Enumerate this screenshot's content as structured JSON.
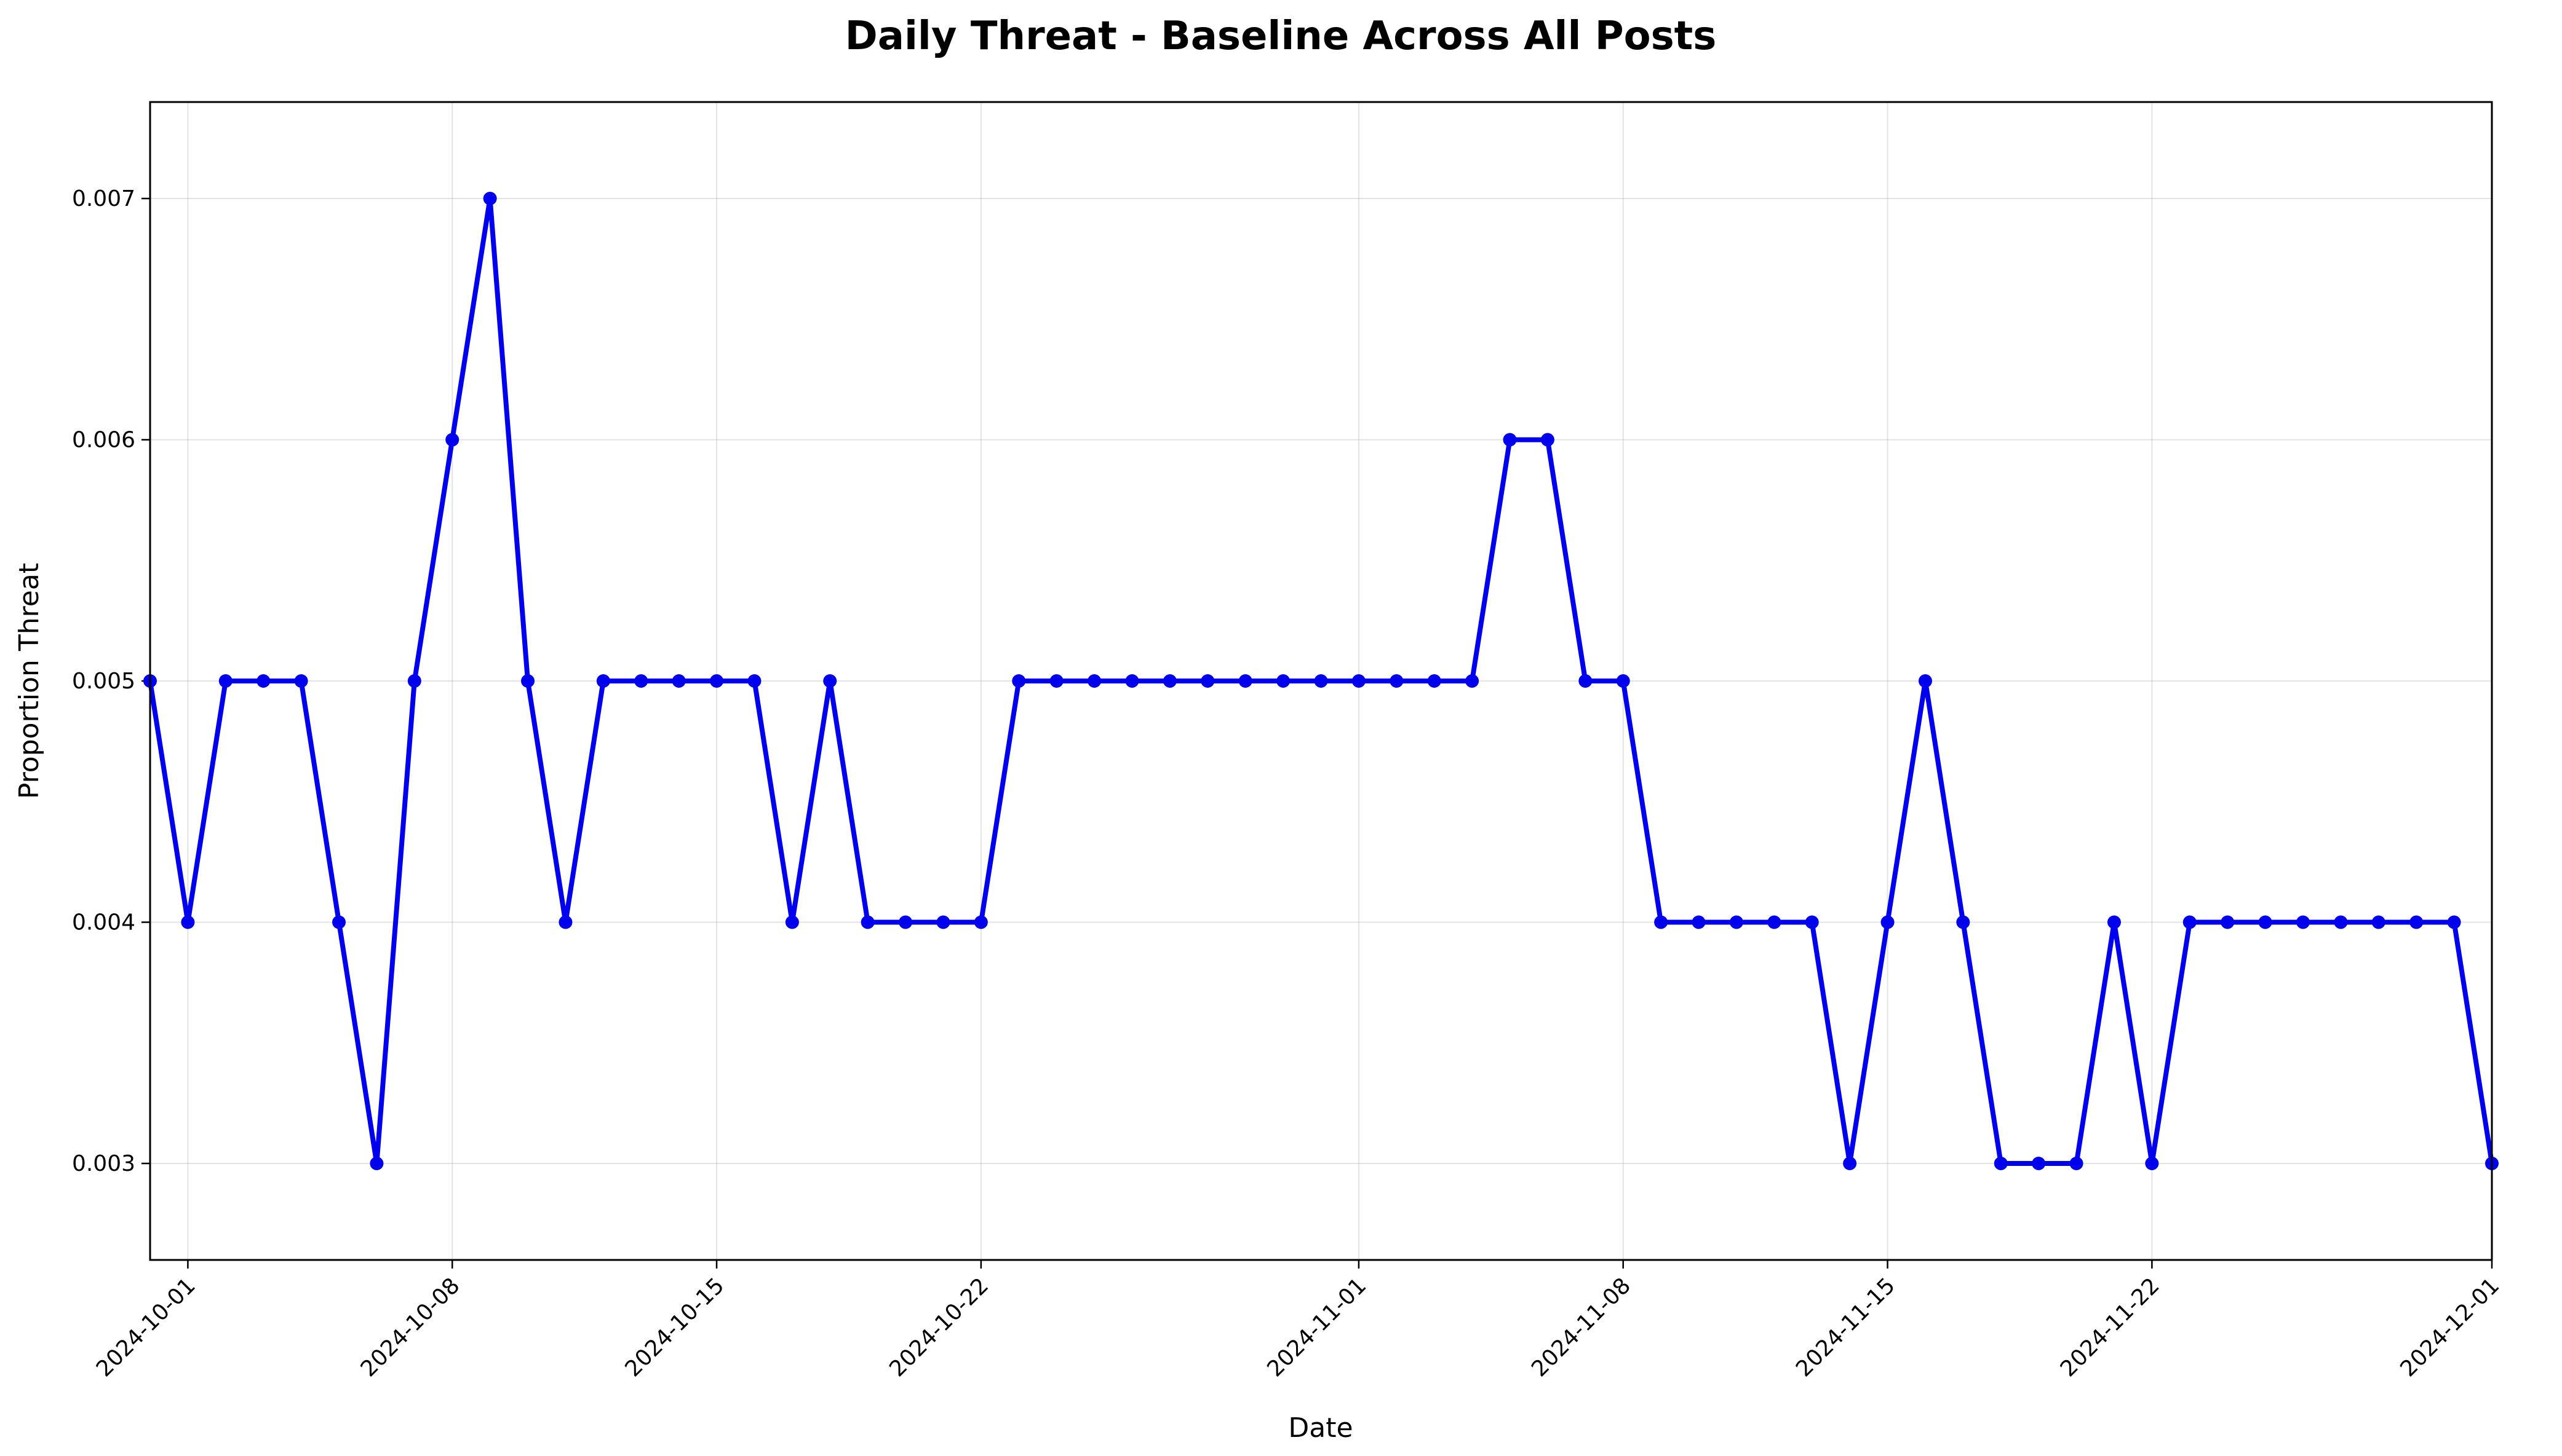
{
  "chart_data": {
    "type": "line",
    "title": "Daily Threat - Baseline Across All Posts",
    "xlabel": "Date",
    "ylabel": "Proportion Threat",
    "xlim": [
      "2024-09-30",
      "2024-12-01"
    ],
    "ylim": [
      0.0026,
      0.0074
    ],
    "x_ticks": [
      "2024-10-01",
      "2024-10-08",
      "2024-10-15",
      "2024-10-22",
      "2024-11-01",
      "2024-11-08",
      "2024-11-15",
      "2024-11-22",
      "2024-12-01"
    ],
    "y_ticks": [
      "0.003",
      "0.004",
      "0.005",
      "0.006",
      "0.007"
    ],
    "grid": true,
    "line_color": "#0000ee",
    "series": [
      {
        "x": [
          "2024-09-30",
          "2024-10-01",
          "2024-10-02",
          "2024-10-03",
          "2024-10-04",
          "2024-10-05",
          "2024-10-06",
          "2024-10-07",
          "2024-10-08",
          "2024-10-09",
          "2024-10-10",
          "2024-10-11",
          "2024-10-12",
          "2024-10-13",
          "2024-10-14",
          "2024-10-15",
          "2024-10-16",
          "2024-10-17",
          "2024-10-18",
          "2024-10-19",
          "2024-10-20",
          "2024-10-21",
          "2024-10-22",
          "2024-10-23",
          "2024-10-24",
          "2024-10-25",
          "2024-10-26",
          "2024-10-27",
          "2024-10-28",
          "2024-10-29",
          "2024-10-30",
          "2024-10-31",
          "2024-11-01",
          "2024-11-02",
          "2024-11-03",
          "2024-11-04",
          "2024-11-05",
          "2024-11-06",
          "2024-11-07",
          "2024-11-08",
          "2024-11-09",
          "2024-11-10",
          "2024-11-11",
          "2024-11-12",
          "2024-11-13",
          "2024-11-14",
          "2024-11-15",
          "2024-11-16",
          "2024-11-17",
          "2024-11-18",
          "2024-11-19",
          "2024-11-20",
          "2024-11-21",
          "2024-11-22",
          "2024-11-23",
          "2024-11-24",
          "2024-11-25",
          "2024-11-26",
          "2024-11-27",
          "2024-11-28",
          "2024-11-29",
          "2024-11-30",
          "2024-12-01"
        ],
        "values": [
          0.005,
          0.004,
          0.005,
          0.005,
          0.005,
          0.004,
          0.003,
          0.005,
          0.006,
          0.007,
          0.005,
          0.004,
          0.005,
          0.005,
          0.005,
          0.005,
          0.005,
          0.004,
          0.005,
          0.004,
          0.004,
          0.004,
          0.004,
          0.005,
          0.005,
          0.005,
          0.005,
          0.005,
          0.005,
          0.005,
          0.005,
          0.005,
          0.005,
          0.005,
          0.005,
          0.005,
          0.006,
          0.006,
          0.005,
          0.005,
          0.004,
          0.004,
          0.004,
          0.004,
          0.004,
          0.003,
          0.004,
          0.005,
          0.004,
          0.003,
          0.003,
          0.003,
          0.004,
          0.003,
          0.004,
          0.004,
          0.004,
          0.004,
          0.004,
          0.004,
          0.004,
          0.004,
          0.003
        ]
      }
    ]
  }
}
